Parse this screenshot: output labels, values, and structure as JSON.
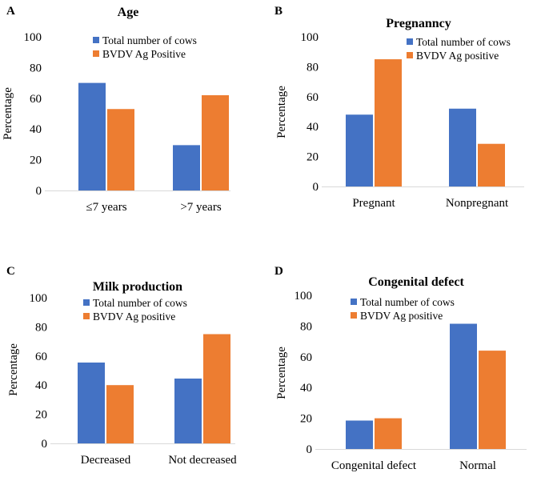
{
  "colors": {
    "total": "#4472C4",
    "positive": "#ED7D31",
    "axis": "#D9D9D9"
  },
  "chart_data": [
    {
      "type": "bar",
      "panel_letter": "A",
      "title": "Age",
      "ylabel": "Percentage",
      "xlabel": "",
      "ylim": [
        0,
        100
      ],
      "yticks": [
        0,
        20,
        40,
        60,
        80,
        100
      ],
      "categories": [
        "≤7 years",
        ">7 years"
      ],
      "series": [
        {
          "name": "Total number of cows",
          "values": [
            70,
            29.5
          ]
        },
        {
          "name": "BVDV Ag Positive",
          "values": [
            53,
            62
          ]
        }
      ]
    },
    {
      "type": "bar",
      "panel_letter": "B",
      "title": "Pregnanncy",
      "ylabel": "Percentage",
      "xlabel": "",
      "ylim": [
        0,
        100
      ],
      "yticks": [
        0,
        20,
        40,
        60,
        80,
        100
      ],
      "categories": [
        "Pregnant",
        "Nonpregnant"
      ],
      "series": [
        {
          "name": "Total number of cows",
          "values": [
            48,
            52
          ]
        },
        {
          "name": "BVDV Ag positive",
          "values": [
            85,
            28.5
          ]
        }
      ]
    },
    {
      "type": "bar",
      "panel_letter": "C",
      "title": "Milk production",
      "ylabel": "Percentage",
      "xlabel": "",
      "ylim": [
        0,
        100
      ],
      "yticks": [
        0,
        20,
        40,
        60,
        80,
        100
      ],
      "categories": [
        "Decreased",
        "Not decreased"
      ],
      "series": [
        {
          "name": "Total number of cows",
          "values": [
            55.5,
            44.5
          ]
        },
        {
          "name": "BVDV Ag positive",
          "values": [
            40,
            75
          ]
        }
      ]
    },
    {
      "type": "bar",
      "panel_letter": "D",
      "title": "Congenital defect",
      "ylabel": "Percentage",
      "xlabel": "",
      "ylim": [
        0,
        100
      ],
      "yticks": [
        0,
        20,
        40,
        60,
        80,
        100
      ],
      "categories": [
        "Congenital defect",
        "Normal"
      ],
      "series": [
        {
          "name": "Total number of cows",
          "values": [
            18.5,
            81.5
          ]
        },
        {
          "name": "BVDV Ag positive",
          "values": [
            20,
            64
          ]
        }
      ]
    }
  ]
}
